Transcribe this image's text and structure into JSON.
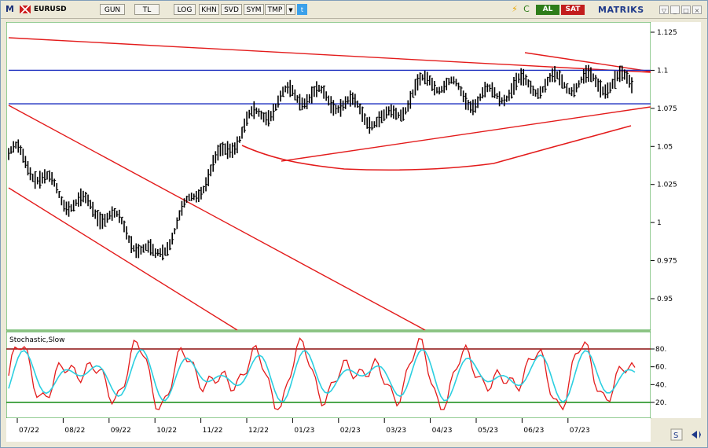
{
  "toolbar": {
    "app_logo": "M",
    "symbol": "EURUSD",
    "buttons": [
      "GUN",
      "TL",
      "LOG",
      "KHN",
      "SVD",
      "SYM",
      "TMP"
    ],
    "buy_label": "AL",
    "sell_label": "SAT",
    "brand": "MATRIKS",
    "icons": [
      "flag-icon",
      "dropdown-arrow-icon",
      "twitter-icon",
      "lightning-icon",
      "refresh-icon"
    ]
  },
  "colors": {
    "price_bars": "#000000",
    "channel": "#e31b1b",
    "horizontal_levels": "#1a2dbf",
    "stochastic_k": "#e31b1b",
    "stochastic_d": "#2ccfe0",
    "overbought_line": "#8b0f0f",
    "oversold_line": "#138a13",
    "buy": "#2e7d1a",
    "sell": "#c21d1d"
  },
  "price_axis": {
    "ticks": [
      "1.125",
      "1.1",
      "1.075",
      "1.05",
      "1.025",
      "1",
      "0.975",
      "0.95"
    ],
    "range": [
      0.925,
      1.13
    ]
  },
  "stochastic": {
    "title": "Stochastic,Slow",
    "ticks": [
      "80.",
      "60.",
      "40.",
      "20."
    ],
    "overbought": 80,
    "oversold": 20
  },
  "time_axis": {
    "labels": [
      "07/22",
      "08/22",
      "09/22",
      "10/22",
      "11/22",
      "12/22",
      "01/23",
      "02/23",
      "03/23",
      "04/23",
      "05/23",
      "06/23",
      "07/23"
    ]
  },
  "chart_data": {
    "type": "line",
    "symbol": "EURUSD",
    "title": "",
    "x": [
      "07/22",
      "08/22",
      "09/22",
      "10/22",
      "11/22",
      "12/22",
      "01/23",
      "02/23",
      "03/23",
      "04/23",
      "05/23",
      "06/23",
      "07/23"
    ],
    "series": [
      {
        "name": "EURUSD",
        "values": [
          1.045,
          1.016,
          1.005,
          0.975,
          1.025,
          1.065,
          1.085,
          1.08,
          1.065,
          1.095,
          1.08,
          1.09,
          1.092
        ]
      }
    ],
    "horizontal_levels": [
      1.1,
      1.078
    ],
    "ylim": [
      0.925,
      1.13
    ]
  }
}
